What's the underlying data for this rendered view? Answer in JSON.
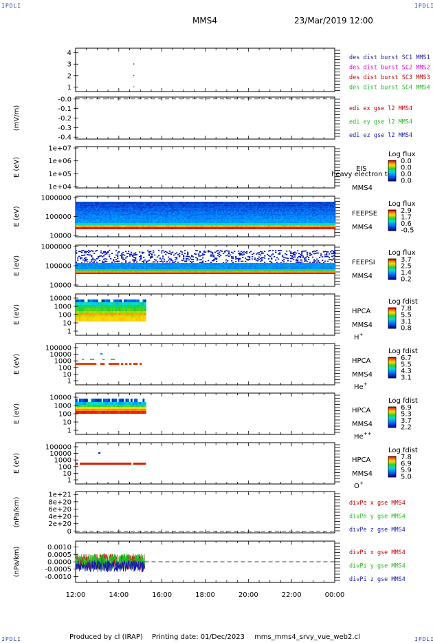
{
  "header": {
    "corner_label": "IPDLI",
    "spacecraft": "MMS4",
    "datetime": "23/Mar/2019 12:00"
  },
  "footer": {
    "produced_by": "Produced by cl (IRAP)",
    "printing_date": "Printing date: 01/Dec/2023",
    "script_name": "mms_mms4_srvy_vue_web2.cl"
  },
  "colors": {
    "blue": "#1a1aaa",
    "magenta": "#dd00dd",
    "red": "#cc0000",
    "green": "#22bb22"
  },
  "chart_data": [
    {
      "id": "panel-des-dist",
      "type": "scatter",
      "ylabel": "",
      "yticks": [
        "1",
        "2",
        "3",
        "4"
      ],
      "ylim": [
        0.6,
        4.4
      ],
      "series": [
        {
          "name": "des dist burst SC1 MMS1",
          "color": "#1a1aaa",
          "x": [],
          "y": []
        },
        {
          "name": "des dist burst SC2 MMS2",
          "color": "#dd00dd",
          "x": [
            14.67
          ],
          "y": [
            2
          ]
        },
        {
          "name": "des dist burst SC3 MMS3",
          "color": "#cc0000",
          "x": [
            14.67
          ],
          "y": [
            3
          ]
        },
        {
          "name": "des dist burst SC4 MMS4",
          "color": "#22bb22",
          "x": [
            14.67
          ],
          "y": [
            1
          ]
        }
      ]
    },
    {
      "id": "panel-edi",
      "type": "line",
      "ylabel": "(mV/m)",
      "yticks": [
        "-0.0",
        "-0.1",
        "-0.2",
        "-0.3",
        "-0.4"
      ],
      "ylim": [
        -0.42,
        0.02
      ],
      "zero_line": -0.0,
      "series": [
        {
          "name": "edi ex gse l2 MMS4",
          "color": "#cc0000"
        },
        {
          "name": "edi ey gse l2 MMS4",
          "color": "#22bb22"
        },
        {
          "name": "edi ez gse l2 MMS4",
          "color": "#1a1aaa"
        }
      ]
    },
    {
      "id": "panel-eis",
      "type": "heatmap",
      "ylabel": "E (eV)",
      "yticks": [
        "1e+07",
        "1e+06",
        "1e+05",
        "1e+04"
      ],
      "instrument": [
        "EIS",
        "MMS4"
      ],
      "overlay_text": "heavy electron to",
      "colorbar": {
        "title": "Log flux",
        "ticks": [
          "0.0",
          "0.0",
          "0.0",
          "0.0"
        ]
      }
    },
    {
      "id": "panel-feepse",
      "type": "heatmap",
      "ylabel": "E (eV)",
      "yticks": [
        "1000000",
        "100000",
        "10000"
      ],
      "instrument": [
        "FEEPSE",
        "MMS4"
      ],
      "time_range": [
        12.0,
        24.0
      ],
      "colorbar": {
        "title": "Log flux",
        "ticks": [
          "2.9",
          "1.7",
          "0.6",
          "-0.5"
        ]
      }
    },
    {
      "id": "panel-feepsi",
      "type": "heatmap",
      "ylabel": "E (eV)",
      "yticks": [
        "1000000",
        "100000",
        "10000"
      ],
      "instrument": [
        "FEEPSI",
        "MMS4"
      ],
      "time_range": [
        12.0,
        24.0
      ],
      "colorbar": {
        "title": "Log flux",
        "ticks": [
          "3.7",
          "2.5",
          "1.4",
          "0.2"
        ]
      }
    },
    {
      "id": "panel-hpca-h",
      "type": "heatmap",
      "ylabel": "E (eV)",
      "yticks": [
        "10000",
        "1000",
        "100",
        "10",
        "1"
      ],
      "instrument": [
        "HPCA",
        "MMS4",
        "H+"
      ],
      "time_range": [
        12.0,
        15.2
      ],
      "colorbar": {
        "title": "Log fdist",
        "ticks": [
          "7.8",
          "5.5",
          "3.1",
          "0.8"
        ]
      }
    },
    {
      "id": "panel-hpca-he",
      "type": "heatmap",
      "ylabel": "E (eV)",
      "yticks": [
        "100000",
        "10000",
        "1000",
        "100",
        "10",
        "1"
      ],
      "instrument": [
        "HPCA",
        "MMS4",
        "He+"
      ],
      "time_range": [
        12.0,
        15.2
      ],
      "colorbar": {
        "title": "Log fdist",
        "ticks": [
          "6.7",
          "5.5",
          "4.3",
          "3.1"
        ]
      }
    },
    {
      "id": "panel-hpca-he2",
      "type": "heatmap",
      "ylabel": "E (eV)",
      "yticks": [
        "10000",
        "1000",
        "100",
        "10",
        "1"
      ],
      "instrument": [
        "HPCA",
        "MMS4",
        "He++"
      ],
      "time_range": [
        12.0,
        15.2
      ],
      "colorbar": {
        "title": "Log fdist",
        "ticks": [
          "6.9",
          "5.3",
          "3.7",
          "2.2"
        ]
      }
    },
    {
      "id": "panel-hpca-o",
      "type": "heatmap",
      "ylabel": "E (eV)",
      "yticks": [
        "100000",
        "10000",
        "1000",
        "100",
        "10",
        "1"
      ],
      "instrument": [
        "HPCA",
        "MMS4",
        "O+"
      ],
      "time_range": [
        12.0,
        15.2
      ],
      "colorbar": {
        "title": "Log fdist",
        "ticks": [
          "7.8",
          "6.9",
          "5.9",
          "5.0"
        ]
      }
    },
    {
      "id": "panel-divpe",
      "type": "line",
      "ylabel": "(nPa/km)",
      "yticks": [
        "1e+21",
        "8e+20",
        "6e+20",
        "4e+20",
        "2e+20",
        "0"
      ],
      "ylim": [
        -5e+19,
        1.08e+21
      ],
      "zero_line": 0,
      "series": [
        {
          "name": "divPe x gse MMS4",
          "color": "#cc0000"
        },
        {
          "name": "divPe y gse MMS4",
          "color": "#22bb22"
        },
        {
          "name": "divPe z gse MMS4",
          "color": "#1a1aaa"
        }
      ]
    },
    {
      "id": "panel-divpi",
      "type": "line",
      "ylabel": "(nPa/km)",
      "yticks": [
        "0.0010",
        "0.0005",
        "0.0000",
        "-0.0005",
        "-0.0010"
      ],
      "ylim": [
        -0.0014,
        0.0014
      ],
      "zero_line": 0,
      "time_range": [
        12.0,
        15.2
      ],
      "series": [
        {
          "name": "divPi x gse MMS4",
          "color": "#cc0000"
        },
        {
          "name": "divPi y gse MMS4",
          "color": "#22bb22"
        },
        {
          "name": "divPi z gse MMS4",
          "color": "#1a1aaa"
        }
      ]
    }
  ],
  "time_axis": {
    "xlim": [
      12.0,
      24.0
    ],
    "tick_labels": [
      "12:00",
      "14:00",
      "16:00",
      "18:00",
      "20:00",
      "22:00",
      "00:00"
    ]
  }
}
